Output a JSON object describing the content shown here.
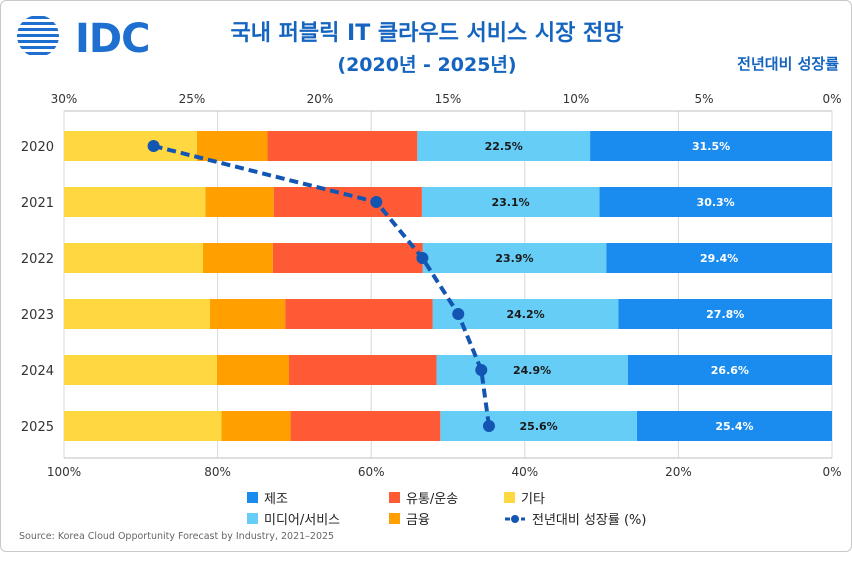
{
  "header": {
    "logo_text": "IDC",
    "title": "국내 퍼블릭 IT 클라우드 서비스 시장 전망",
    "subtitle": "(2020년 - 2025년)",
    "right_note": "전년대비 성장률"
  },
  "source": "Source: Korea Cloud Opportunity Forecast by Industry, 2021–2025",
  "chart_data": {
    "type": "bar",
    "orientation": "horizontal-stacked-100",
    "categories": [
      "2020",
      "2021",
      "2022",
      "2023",
      "2024",
      "2025"
    ],
    "bottom_axis": {
      "ticks": [
        "100%",
        "80%",
        "60%",
        "40%",
        "20%",
        "0%"
      ],
      "range": [
        100,
        0
      ]
    },
    "top_axis": {
      "ticks": [
        "30%",
        "25%",
        "20%",
        "15%",
        "10%",
        "5%",
        "0%"
      ],
      "range": [
        30,
        0
      ]
    },
    "series": [
      {
        "name": "제조",
        "color": "#1a8cf0",
        "values": [
          31.5,
          30.3,
          29.4,
          27.8,
          26.6,
          25.4
        ],
        "labels": [
          "31.5%",
          "30.3%",
          "29.4%",
          "27.8%",
          "26.6%",
          "25.4%"
        ]
      },
      {
        "name": "미디어/서비스",
        "color": "#66cdf7",
        "values": [
          22.5,
          23.1,
          23.9,
          24.2,
          24.9,
          25.6
        ],
        "labels": [
          "22.5%",
          "23.1%",
          "23.9%",
          "24.2%",
          "24.9%",
          "25.6%"
        ]
      },
      {
        "name": "유통/운송",
        "color": "#ff5a36",
        "values": [
          19.5,
          19.3,
          19.5,
          19.2,
          19.2,
          19.5
        ]
      },
      {
        "name": "금융",
        "color": "#ffa000",
        "values": [
          9.2,
          8.9,
          9.1,
          9.8,
          9.4,
          9.0
        ]
      },
      {
        "name": "기타",
        "color": "#ffd740",
        "values": [
          17.3,
          18.4,
          18.1,
          19.0,
          19.9,
          20.5
        ]
      }
    ],
    "growth_line": {
      "name": "전년대비 성장률 (%)",
      "color": "#1255b3",
      "values": [
        26.5,
        17.8,
        16.0,
        14.6,
        13.7,
        13.4
      ]
    },
    "legend": [
      {
        "label": "제조",
        "color": "#1a8cf0",
        "kind": "square"
      },
      {
        "label": "유통/운송",
        "color": "#ff5a36",
        "kind": "square"
      },
      {
        "label": "기타",
        "color": "#ffd740",
        "kind": "square"
      },
      {
        "label": "미디어/서비스",
        "color": "#66cdf7",
        "kind": "square"
      },
      {
        "label": "금융",
        "color": "#ffa000",
        "kind": "square"
      },
      {
        "label": "전년대비 성장률 (%)",
        "color": "#1255b3",
        "kind": "line"
      }
    ],
    "grid": true,
    "legend_position": "bottom"
  }
}
